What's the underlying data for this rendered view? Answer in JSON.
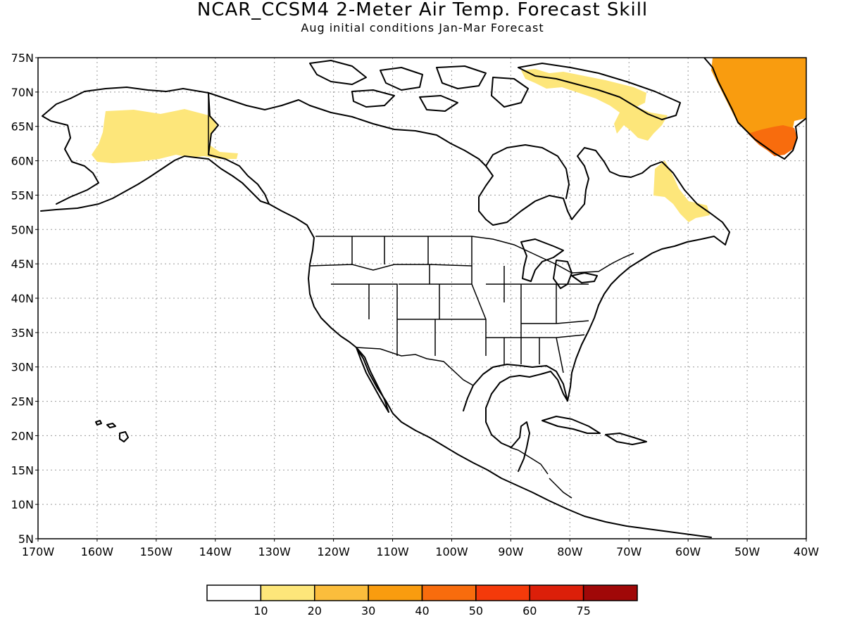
{
  "title": "NCAR_CCSM4 2-Meter Air Temp. Forecast Skill",
  "subtitle": "Aug initial conditions  Jan-Mar Forecast",
  "map": {
    "lon_range": [
      -170,
      -40
    ],
    "lat_range": [
      5,
      75
    ],
    "lat_labels": [
      "75N",
      "70N",
      "65N",
      "60N",
      "55N",
      "50N",
      "45N",
      "40N",
      "35N",
      "30N",
      "25N",
      "20N",
      "15N",
      "10N",
      "5N"
    ],
    "lon_labels": [
      "170W",
      "160W",
      "150W",
      "140W",
      "130W",
      "120W",
      "110W",
      "100W",
      "90W",
      "80W",
      "70W",
      "60W",
      "50W",
      "40W"
    ],
    "grid": true
  },
  "colorbar": {
    "labels": [
      "10",
      "20",
      "30",
      "40",
      "50",
      "60",
      "75"
    ],
    "colors": [
      "#ffffff",
      "#fde67a",
      "#fbbd3c",
      "#f99c0f",
      "#f86c0d",
      "#f43a0a",
      "#dc1f09",
      "#a00808"
    ]
  },
  "skill_regions": [
    {
      "name": "alaska-skill",
      "color": "#fde67a"
    },
    {
      "name": "baffin-skill",
      "color": "#fde67a"
    },
    {
      "name": "labrador-skill",
      "color": "#fde67a"
    },
    {
      "name": "greenland-skill",
      "color": "#f99c0f"
    },
    {
      "name": "greenland-south-skill",
      "color": "#f86c0d"
    }
  ]
}
